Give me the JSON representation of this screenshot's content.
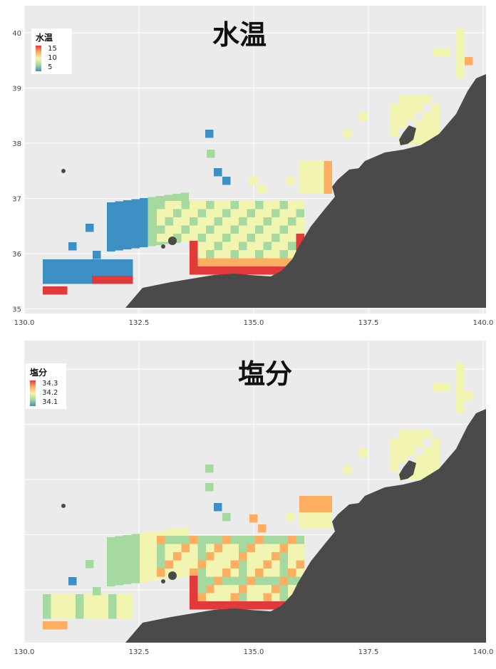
{
  "colors": {
    "panel_bg": "#ebebeb",
    "grid": "#ffffff",
    "land": "#4a4a4a",
    "scale_low": "#3e8fc4",
    "scale_mid_low": "#a6d9a0",
    "scale_mid": "#f2f5b0",
    "scale_mid_high": "#fdae61",
    "scale_high": "#e03a3a"
  },
  "x_axis": {
    "ticks": [
      "130.0",
      "132.5",
      "135.0",
      "137.5",
      "140.0"
    ],
    "lim": [
      130.0,
      140.0
    ]
  },
  "panels": [
    {
      "id": "temperature",
      "title": "水温",
      "legend_title": "水温",
      "legend_labels": [
        "15",
        "10",
        "5"
      ],
      "y_ticks": [
        "40",
        "39",
        "38",
        "37",
        "36",
        "35"
      ],
      "show_x_labels": true,
      "show_y_labels": true
    },
    {
      "id": "salinity",
      "title": "塩分",
      "legend_title": "塩分",
      "legend_labels": [
        "34.3",
        "34.2",
        "34.1"
      ],
      "y_ticks": [
        "",
        "",
        "",
        "",
        "",
        ""
      ],
      "show_x_labels": true,
      "show_y_labels": false
    }
  ]
}
